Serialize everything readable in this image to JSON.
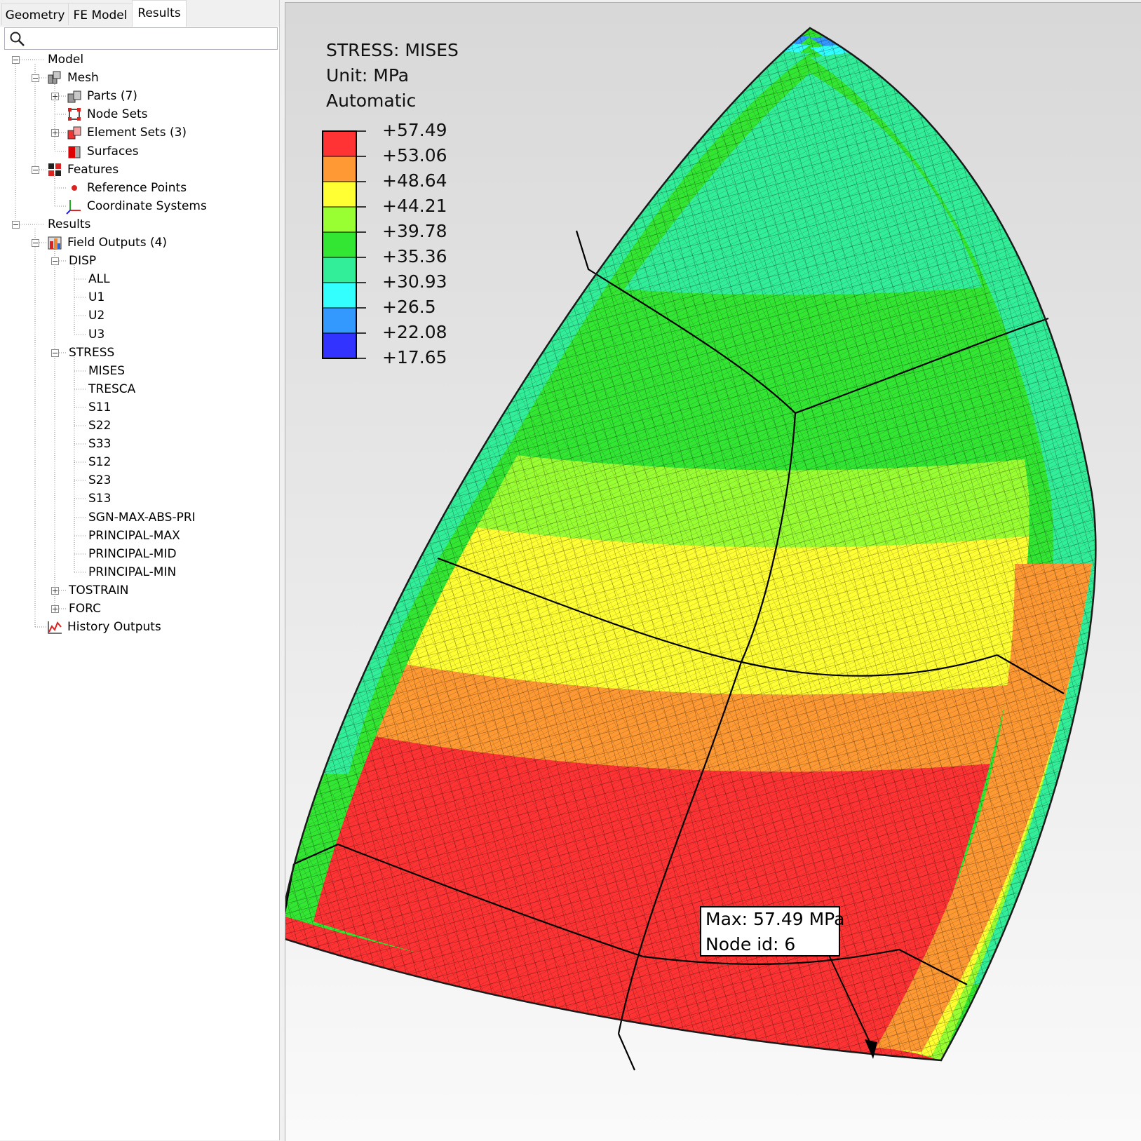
{
  "tabs": [
    {
      "label": "Geometry",
      "active": false
    },
    {
      "label": "FE Model",
      "active": false
    },
    {
      "label": "Results",
      "active": true
    }
  ],
  "search": {
    "placeholder": "",
    "value": ""
  },
  "tree": [
    {
      "label": "Model",
      "level": 0,
      "expander": "minus",
      "icon": ""
    },
    {
      "label": "Mesh",
      "level": 1,
      "expander": "minus",
      "icon": "mesh-icon"
    },
    {
      "label": "Parts (7)",
      "level": 2,
      "expander": "plus",
      "icon": "parts-icon"
    },
    {
      "label": "Node Sets",
      "level": 2,
      "expander": "",
      "icon": "node-sets-icon"
    },
    {
      "label": "Element Sets (3)",
      "level": 2,
      "expander": "plus",
      "icon": "element-sets-icon"
    },
    {
      "label": "Surfaces",
      "level": 2,
      "expander": "",
      "icon": "surfaces-icon"
    },
    {
      "label": "Features",
      "level": 1,
      "expander": "minus",
      "icon": "features-icon"
    },
    {
      "label": "Reference Points",
      "level": 2,
      "expander": "",
      "icon": "reference-point-icon"
    },
    {
      "label": "Coordinate Systems",
      "level": 2,
      "expander": "",
      "icon": "coordinate-system-icon"
    },
    {
      "label": "Results",
      "level": 0,
      "expander": "minus",
      "icon": ""
    },
    {
      "label": "Field Outputs (4)",
      "level": 1,
      "expander": "minus",
      "icon": "field-outputs-icon"
    },
    {
      "label": "DISP",
      "level": 2,
      "expander": "minus",
      "icon": ""
    },
    {
      "label": "ALL",
      "level": 3,
      "expander": "",
      "icon": ""
    },
    {
      "label": "U1",
      "level": 3,
      "expander": "",
      "icon": ""
    },
    {
      "label": "U2",
      "level": 3,
      "expander": "",
      "icon": ""
    },
    {
      "label": "U3",
      "level": 3,
      "expander": "",
      "icon": ""
    },
    {
      "label": "STRESS",
      "level": 2,
      "expander": "minus",
      "icon": ""
    },
    {
      "label": "MISES",
      "level": 3,
      "expander": "",
      "icon": ""
    },
    {
      "label": "TRESCA",
      "level": 3,
      "expander": "",
      "icon": ""
    },
    {
      "label": "S11",
      "level": 3,
      "expander": "",
      "icon": ""
    },
    {
      "label": "S22",
      "level": 3,
      "expander": "",
      "icon": ""
    },
    {
      "label": "S33",
      "level": 3,
      "expander": "",
      "icon": ""
    },
    {
      "label": "S12",
      "level": 3,
      "expander": "",
      "icon": ""
    },
    {
      "label": "S23",
      "level": 3,
      "expander": "",
      "icon": ""
    },
    {
      "label": "S13",
      "level": 3,
      "expander": "",
      "icon": ""
    },
    {
      "label": "SGN-MAX-ABS-PRI",
      "level": 3,
      "expander": "",
      "icon": ""
    },
    {
      "label": "PRINCIPAL-MAX",
      "level": 3,
      "expander": "",
      "icon": ""
    },
    {
      "label": "PRINCIPAL-MID",
      "level": 3,
      "expander": "",
      "icon": ""
    },
    {
      "label": "PRINCIPAL-MIN",
      "level": 3,
      "expander": "",
      "icon": ""
    },
    {
      "label": "TOSTRAIN",
      "level": 2,
      "expander": "plus",
      "icon": ""
    },
    {
      "label": "FORC",
      "level": 2,
      "expander": "plus",
      "icon": ""
    },
    {
      "label": "History Outputs",
      "level": 1,
      "expander": "",
      "icon": "history-outputs-icon"
    }
  ],
  "legend": {
    "title": "STRESS: MISES",
    "unit": "Unit: MPa",
    "mode": "Automatic",
    "values": [
      "+57.49",
      "+53.06",
      "+48.64",
      "+44.21",
      "+39.78",
      "+35.36",
      "+30.93",
      "+26.5",
      "+22.08",
      "+17.65"
    ],
    "colors": [
      "#ff3333",
      "#ff9933",
      "#ffff33",
      "#99ff33",
      "#33e633",
      "#33ee99",
      "#33ffff",
      "#3399ff",
      "#3333ff"
    ]
  },
  "callout": {
    "max_text": "Max: 57.49 MPa",
    "node_text": "Node id: 6"
  }
}
